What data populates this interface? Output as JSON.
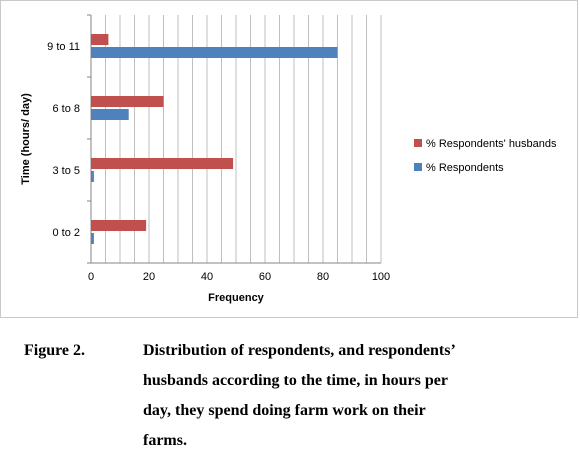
{
  "chart_data": {
    "type": "bar",
    "orientation": "horizontal",
    "categories": [
      "0 to 2",
      "3 to 5",
      "6 to 8",
      "9 to 11"
    ],
    "series": [
      {
        "name": "% Respondents",
        "values": [
          1,
          1,
          13,
          85
        ],
        "color": "#4f81bd"
      },
      {
        "name": "% Respondents' husbands",
        "values": [
          19,
          49,
          25,
          6
        ],
        "color": "#c0504d"
      }
    ],
    "xlabel": "Frequency",
    "ylabel": "Time (hours/ day)",
    "xlim": [
      0,
      100
    ],
    "xticks": [
      0,
      20,
      40,
      60,
      80,
      100
    ],
    "grid": "vertical",
    "legend_position": "right"
  },
  "caption": {
    "label": "Figure 2.",
    "lines": [
      "Distribution of respondents, and respondents’",
      "husbands according to the  time, in hours per",
      "day, they  spend doing farm work on  their",
      "farms."
    ]
  }
}
